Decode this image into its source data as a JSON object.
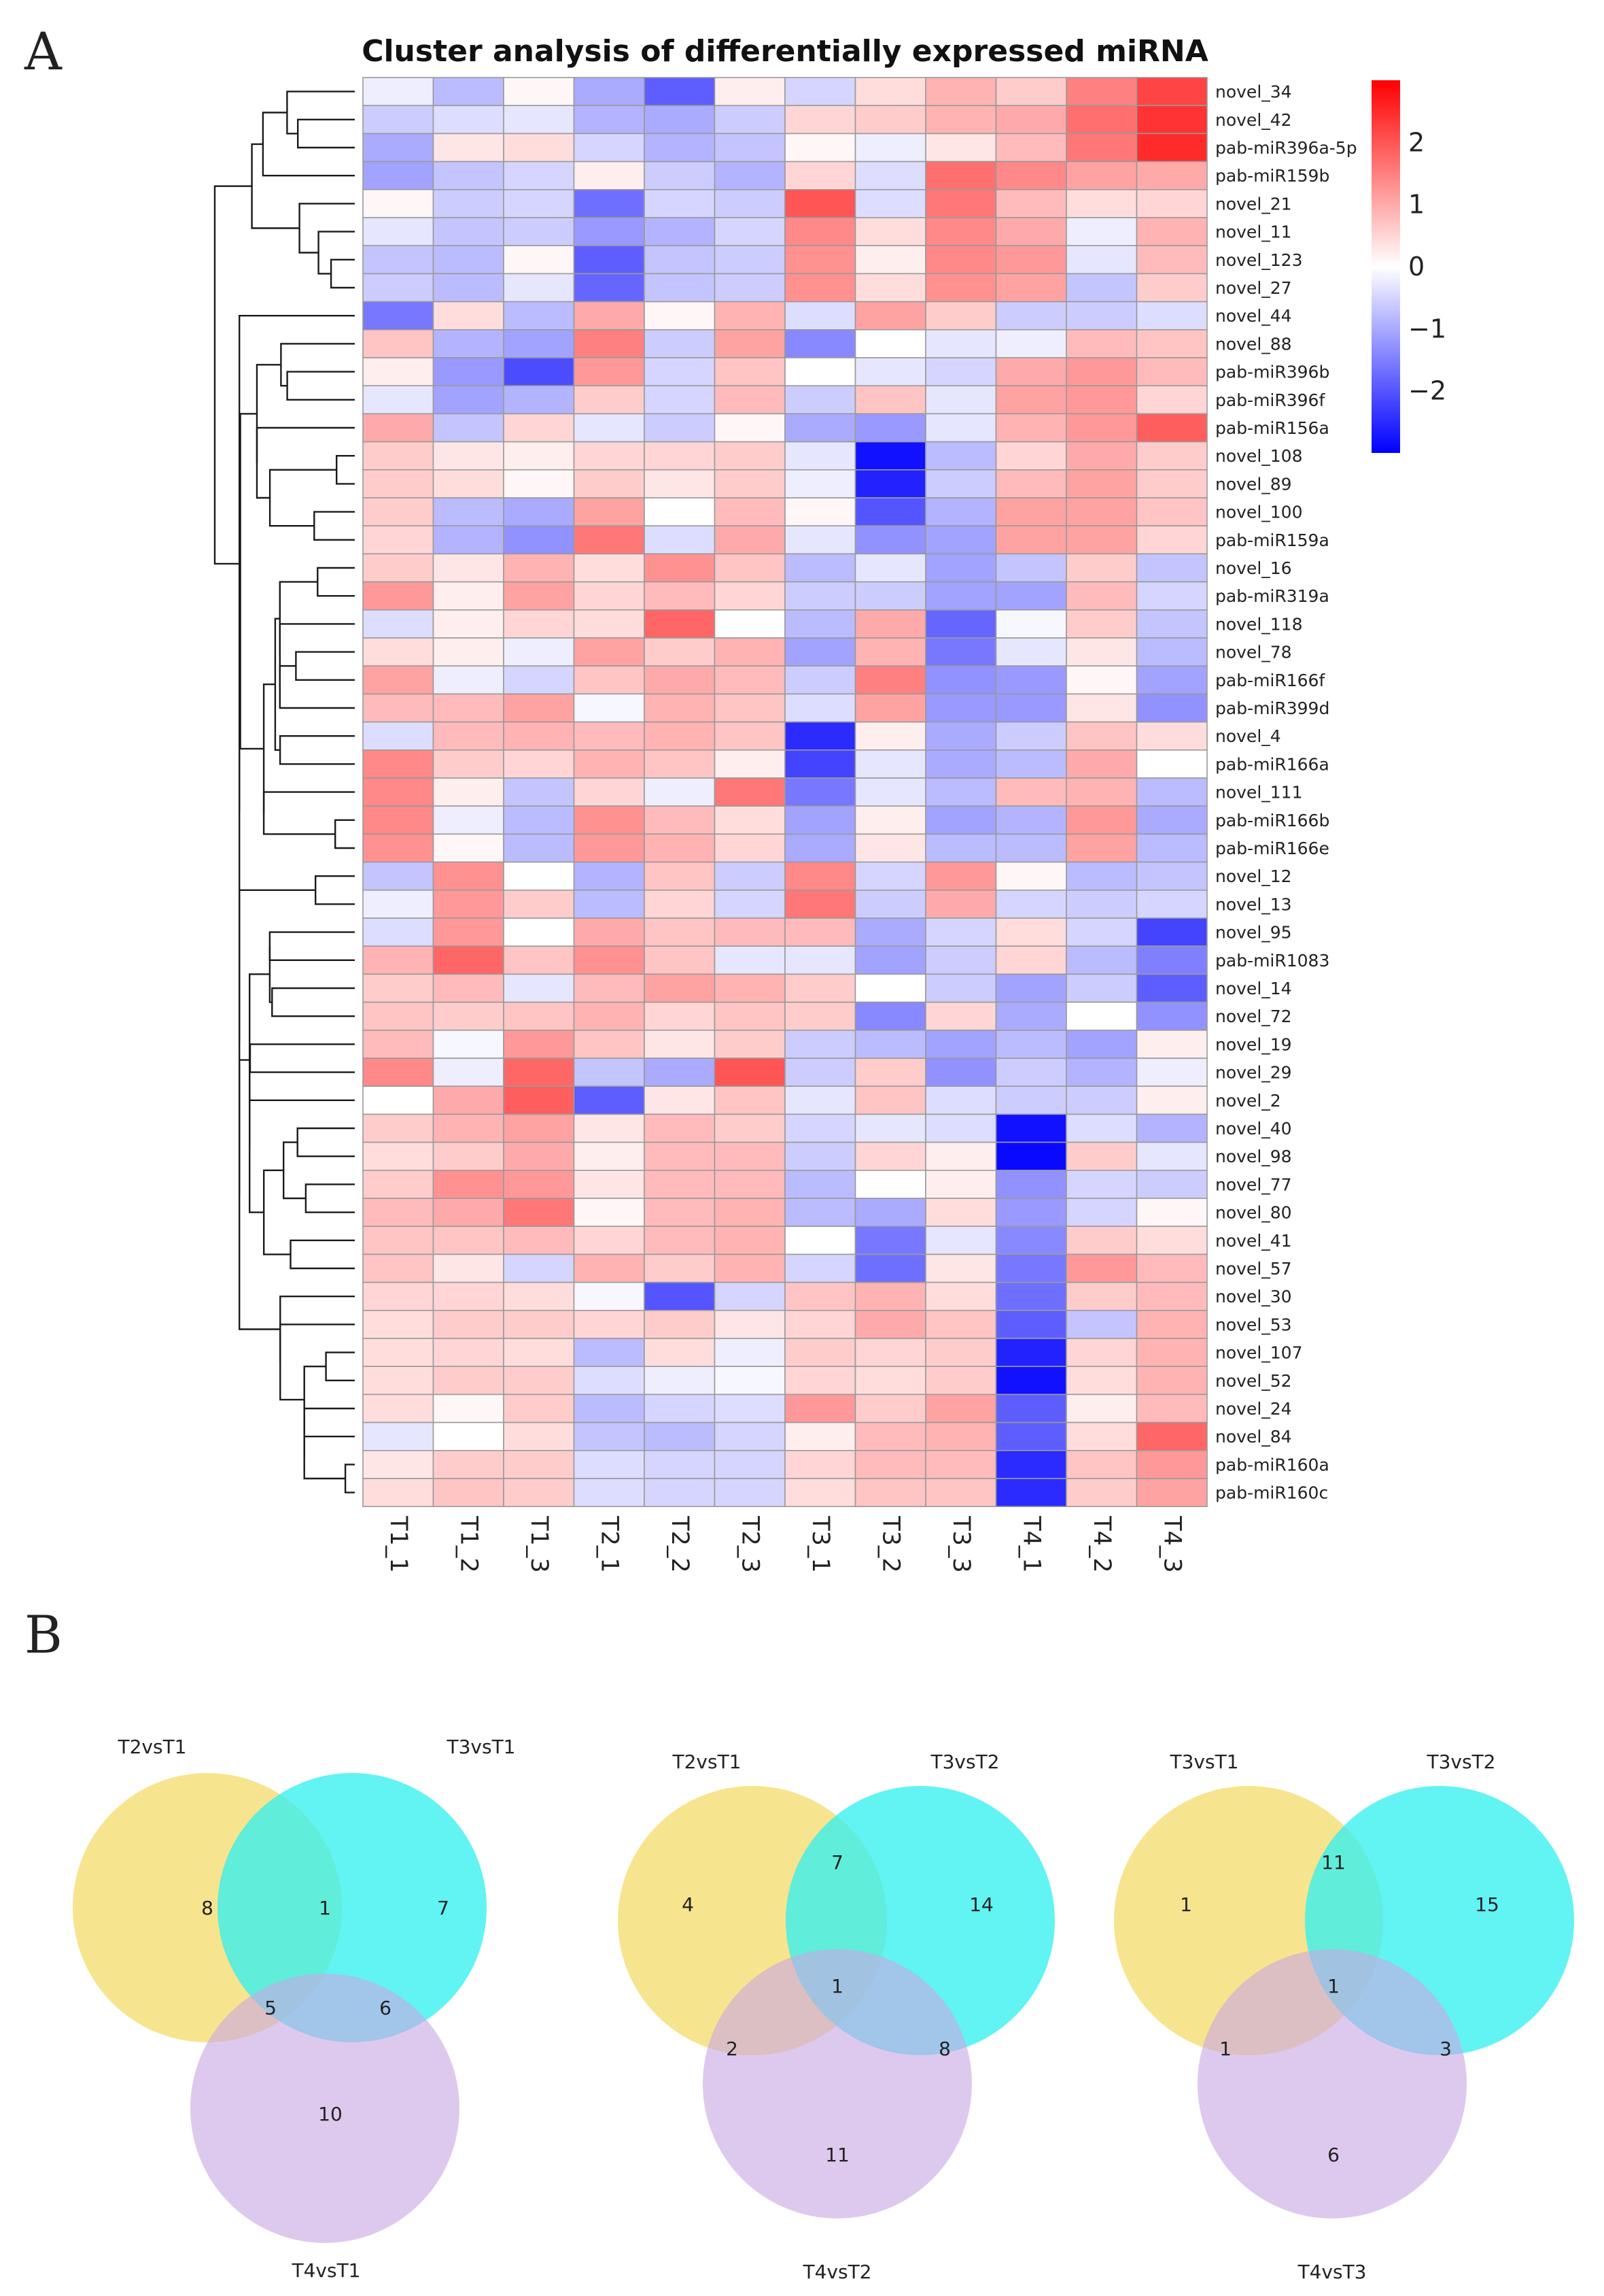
{
  "panel_a_label": "A",
  "panel_b_label": "B",
  "chart_data": [
    {
      "type": "heatmap",
      "title": "Cluster analysis of differentially expressed miRNA",
      "columns": [
        "T1_1",
        "T1_2",
        "T1_3",
        "T2_1",
        "T2_2",
        "T2_3",
        "T3_1",
        "T3_2",
        "T3_3",
        "T4_1",
        "T4_2",
        "T4_3"
      ],
      "rows": [
        "novel_34",
        "novel_42",
        "pab-miR396a-5p",
        "pab-miR159b",
        "novel_21",
        "novel_11",
        "novel_123",
        "novel_27",
        "novel_44",
        "novel_88",
        "pab-miR396b",
        "pab-miR396f",
        "pab-miR156a",
        "novel_108",
        "novel_89",
        "novel_100",
        "pab-miR159a",
        "novel_16",
        "pab-miR319a",
        "novel_118",
        "novel_78",
        "pab-miR166f",
        "pab-miR399d",
        "novel_4",
        "pab-miR166a",
        "novel_111",
        "pab-miR166b",
        "pab-miR166e",
        "novel_12",
        "novel_13",
        "novel_95",
        "pab-miR1083",
        "novel_14",
        "novel_72",
        "novel_19",
        "novel_29",
        "novel_2",
        "novel_40",
        "novel_98",
        "novel_77",
        "novel_80",
        "novel_41",
        "novel_57",
        "novel_30",
        "novel_53",
        "novel_107",
        "novel_52",
        "novel_24",
        "novel_84",
        "pab-miR160a",
        "pab-miR160c"
      ],
      "values": [
        [
          -0.2,
          -0.8,
          0.1,
          -1.0,
          -1.9,
          0.2,
          -0.5,
          0.4,
          0.9,
          0.6,
          1.5,
          2.2
        ],
        [
          -0.6,
          -0.4,
          -0.3,
          -0.9,
          -1.0,
          -0.6,
          0.5,
          0.6,
          0.9,
          1.0,
          1.7,
          2.4
        ],
        [
          -1.0,
          0.3,
          0.4,
          -0.5,
          -0.9,
          -0.7,
          0.1,
          -0.2,
          0.3,
          0.8,
          1.6,
          2.5
        ],
        [
          -1.1,
          -0.7,
          -0.5,
          0.2,
          -0.6,
          -0.9,
          0.5,
          -0.4,
          1.7,
          1.4,
          1.1,
          1.0
        ],
        [
          0.1,
          -0.6,
          -0.5,
          -1.7,
          -0.5,
          -0.6,
          2.0,
          -0.4,
          1.6,
          0.8,
          0.4,
          0.5
        ],
        [
          -0.3,
          -0.7,
          -0.6,
          -1.2,
          -0.9,
          -0.5,
          1.4,
          0.4,
          1.4,
          1.0,
          -0.2,
          0.9
        ],
        [
          -0.7,
          -0.8,
          0.1,
          -1.9,
          -0.7,
          -0.6,
          1.3,
          0.2,
          1.4,
          1.2,
          -0.3,
          0.8
        ],
        [
          -0.6,
          -0.8,
          -0.3,
          -1.8,
          -0.7,
          -0.6,
          1.3,
          0.4,
          1.3,
          1.1,
          -0.7,
          0.6
        ],
        [
          -1.6,
          0.4,
          -0.8,
          1.0,
          0.1,
          0.9,
          -0.4,
          1.1,
          0.6,
          -0.6,
          -0.6,
          -0.4
        ],
        [
          0.7,
          -0.9,
          -1.1,
          1.5,
          -0.6,
          1.1,
          -1.4,
          0.0,
          -0.3,
          -0.2,
          0.8,
          0.7
        ],
        [
          0.2,
          -1.2,
          -2.1,
          1.2,
          -0.5,
          0.7,
          0.0,
          -0.3,
          -0.5,
          1.0,
          1.2,
          0.8
        ],
        [
          -0.3,
          -1.1,
          -0.9,
          0.6,
          -0.5,
          0.8,
          -0.6,
          0.7,
          -0.3,
          1.1,
          1.2,
          0.5
        ],
        [
          1.0,
          -0.7,
          0.5,
          -0.3,
          -0.6,
          0.1,
          -1.0,
          -1.2,
          -0.3,
          0.9,
          1.2,
          1.9
        ],
        [
          0.6,
          0.3,
          0.2,
          0.5,
          0.5,
          0.6,
          -0.3,
          -2.8,
          -0.8,
          0.5,
          1.0,
          0.6
        ],
        [
          0.6,
          0.4,
          0.1,
          0.6,
          0.3,
          0.6,
          -0.2,
          -2.6,
          -0.6,
          0.8,
          1.1,
          0.6
        ],
        [
          0.6,
          -0.8,
          -1.0,
          1.1,
          0.0,
          0.8,
          0.1,
          -2.0,
          -0.9,
          1.1,
          1.1,
          0.7
        ],
        [
          0.5,
          -0.9,
          -1.3,
          1.6,
          -0.4,
          1.0,
          -0.3,
          -1.3,
          -1.1,
          1.1,
          1.1,
          0.5
        ],
        [
          0.6,
          0.3,
          0.9,
          0.4,
          1.3,
          0.7,
          -0.8,
          -0.3,
          -1.1,
          -0.7,
          0.6,
          -0.7
        ],
        [
          1.2,
          0.2,
          1.1,
          0.5,
          0.8,
          0.5,
          -0.6,
          -0.6,
          -1.1,
          -1.1,
          0.8,
          -0.5
        ],
        [
          -0.4,
          0.2,
          0.5,
          0.4,
          1.8,
          0.0,
          -0.8,
          1.0,
          -1.8,
          -0.1,
          0.6,
          -0.7
        ],
        [
          0.4,
          0.2,
          -0.2,
          1.1,
          0.6,
          0.9,
          -1.1,
          0.9,
          -1.6,
          -0.3,
          0.3,
          -0.8
        ],
        [
          1.1,
          -0.2,
          -0.5,
          0.7,
          1.0,
          0.8,
          -0.6,
          1.5,
          -1.3,
          -1.2,
          0.1,
          -1.1
        ],
        [
          0.8,
          0.8,
          1.1,
          -0.1,
          0.9,
          0.7,
          -0.4,
          1.1,
          -1.2,
          -1.2,
          0.3,
          -1.3
        ],
        [
          -0.4,
          0.8,
          0.9,
          0.8,
          0.9,
          0.7,
          -2.5,
          0.2,
          -1.0,
          -0.6,
          0.7,
          0.4
        ],
        [
          1.4,
          0.6,
          0.5,
          0.9,
          0.7,
          0.2,
          -2.2,
          -0.3,
          -1.0,
          -0.8,
          1.0,
          0.0
        ],
        [
          1.4,
          0.2,
          -0.7,
          0.5,
          -0.2,
          1.6,
          -1.6,
          -0.3,
          -0.8,
          0.8,
          0.9,
          -0.8
        ],
        [
          1.4,
          -0.2,
          -0.8,
          1.3,
          0.8,
          0.4,
          -1.1,
          0.2,
          -1.1,
          -0.9,
          1.2,
          -1.0
        ],
        [
          1.3,
          0.1,
          -0.8,
          1.2,
          0.9,
          0.5,
          -1.0,
          0.3,
          -0.8,
          -0.8,
          1.1,
          -0.8
        ],
        [
          -0.7,
          1.3,
          0.0,
          -0.9,
          0.7,
          -0.6,
          1.4,
          -0.5,
          1.2,
          0.1,
          -0.8,
          -0.7
        ],
        [
          -0.2,
          1.2,
          0.6,
          -0.8,
          0.5,
          -0.5,
          1.6,
          -0.6,
          1.0,
          -0.5,
          -0.6,
          -0.5
        ],
        [
          -0.4,
          1.2,
          0.0,
          1.0,
          0.7,
          0.8,
          0.8,
          -1.0,
          -0.5,
          0.4,
          -0.5,
          -2.2
        ],
        [
          0.9,
          1.8,
          0.7,
          1.3,
          0.7,
          -0.3,
          -0.3,
          -1.1,
          -0.6,
          0.5,
          -0.8,
          -1.5
        ],
        [
          0.6,
          0.8,
          -0.3,
          0.8,
          1.1,
          0.9,
          0.6,
          0.0,
          -0.6,
          -1.1,
          -0.6,
          -1.9
        ],
        [
          0.7,
          0.6,
          0.7,
          0.9,
          0.5,
          0.7,
          0.6,
          -1.4,
          0.5,
          -1.0,
          0.0,
          -1.3
        ],
        [
          0.8,
          -0.1,
          1.2,
          0.7,
          0.3,
          0.6,
          -0.6,
          -0.8,
          -1.1,
          -0.8,
          -1.1,
          0.2
        ],
        [
          1.4,
          -0.2,
          1.8,
          -0.7,
          -1.0,
          2.0,
          -0.6,
          0.6,
          -1.3,
          -0.6,
          -0.9,
          -0.2
        ],
        [
          0.0,
          1.0,
          1.9,
          -1.9,
          0.3,
          0.7,
          -0.3,
          0.7,
          -0.4,
          -0.6,
          -0.6,
          0.2
        ],
        [
          0.6,
          0.9,
          1.1,
          0.3,
          0.8,
          0.6,
          -0.5,
          -0.3,
          -0.4,
          -2.8,
          -0.4,
          -0.9
        ],
        [
          0.4,
          0.6,
          1.0,
          0.2,
          0.8,
          0.8,
          -0.6,
          0.5,
          0.2,
          -2.9,
          0.6,
          -0.3
        ],
        [
          0.6,
          1.3,
          1.2,
          0.3,
          0.8,
          0.8,
          -0.8,
          0.0,
          0.2,
          -1.3,
          -0.5,
          -0.6
        ],
        [
          0.8,
          1.0,
          1.6,
          0.1,
          0.8,
          0.9,
          -0.8,
          -1.0,
          0.4,
          -1.2,
          -0.5,
          0.1
        ],
        [
          0.7,
          0.7,
          0.8,
          0.5,
          0.8,
          0.9,
          0.0,
          -1.6,
          -0.3,
          -1.4,
          0.6,
          0.4
        ],
        [
          0.7,
          0.3,
          -0.5,
          0.9,
          0.6,
          0.9,
          -0.5,
          -1.7,
          0.3,
          -1.6,
          1.2,
          0.8
        ],
        [
          0.5,
          0.5,
          0.4,
          -0.1,
          -2.0,
          -0.5,
          0.7,
          0.9,
          0.4,
          -1.7,
          0.6,
          0.8
        ],
        [
          0.4,
          0.6,
          0.6,
          0.5,
          0.6,
          0.3,
          0.5,
          1.0,
          0.7,
          -1.9,
          -0.7,
          0.9
        ],
        [
          0.4,
          0.5,
          0.4,
          -0.8,
          0.4,
          -0.2,
          0.6,
          0.5,
          0.6,
          -2.6,
          0.5,
          0.9
        ],
        [
          0.4,
          0.6,
          0.6,
          -0.4,
          -0.2,
          -0.1,
          0.5,
          0.4,
          0.6,
          -2.8,
          0.4,
          0.9
        ],
        [
          0.4,
          0.1,
          0.6,
          -0.8,
          -0.5,
          -0.4,
          1.2,
          0.6,
          1.1,
          -1.9,
          0.2,
          0.8
        ],
        [
          -0.3,
          0.0,
          0.4,
          -0.7,
          -0.8,
          -0.5,
          0.2,
          0.8,
          0.9,
          -1.9,
          0.4,
          1.8
        ],
        [
          0.3,
          0.6,
          0.6,
          -0.4,
          -0.5,
          -0.5,
          0.5,
          0.8,
          0.8,
          -2.5,
          0.7,
          1.2
        ],
        [
          0.4,
          0.7,
          0.6,
          -0.4,
          -0.5,
          -0.5,
          0.4,
          0.7,
          0.7,
          -2.5,
          0.6,
          1.1
        ]
      ],
      "color_scale": {
        "min": -3,
        "max": 3,
        "low": "#0000ff",
        "mid": "#ffffff",
        "high": "#ff0000"
      },
      "legend_ticks": [
        "2",
        "1",
        "0",
        "−1",
        "−2"
      ],
      "legend_tick_values": [
        2,
        1,
        0,
        -1,
        -2
      ],
      "row_dendrogram": true,
      "legend_placement": "top-right"
    },
    {
      "type": "venn",
      "sets": [
        "T2vsT1",
        "T3vsT1",
        "T4vsT1"
      ],
      "regions": {
        "A": "8",
        "B": "7",
        "C": "10",
        "AB": "1",
        "AC": "5",
        "BC": "6",
        "ABC": ""
      },
      "colors": [
        "#f5dc6e",
        "#36f0f0",
        "#c9a8e4"
      ]
    },
    {
      "type": "venn",
      "sets": [
        "T2vsT1",
        "T3vsT2",
        "T4vsT2"
      ],
      "regions": {
        "A": "4",
        "B": "14",
        "C": "11",
        "AB": "7",
        "AC": "2",
        "BC": "8",
        "ABC": "1"
      },
      "colors": [
        "#f5dc6e",
        "#36f0f0",
        "#c9a8e4"
      ]
    },
    {
      "type": "venn",
      "sets": [
        "T3vsT1",
        "T3vsT2",
        "T4vsT3"
      ],
      "regions": {
        "A": "1",
        "B": "15",
        "C": "6",
        "AB": "11",
        "AC": "1",
        "BC": "3",
        "ABC": "1"
      },
      "colors": [
        "#f5dc6e",
        "#36f0f0",
        "#c9a8e4"
      ]
    }
  ]
}
